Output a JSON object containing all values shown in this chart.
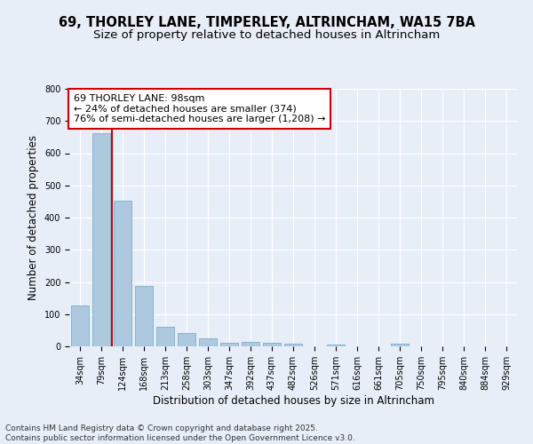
{
  "title_line1": "69, THORLEY LANE, TIMPERLEY, ALTRINCHAM, WA15 7BA",
  "title_line2": "Size of property relative to detached houses in Altrincham",
  "xlabel": "Distribution of detached houses by size in Altrincham",
  "ylabel": "Number of detached properties",
  "categories": [
    "34sqm",
    "79sqm",
    "124sqm",
    "168sqm",
    "213sqm",
    "258sqm",
    "303sqm",
    "347sqm",
    "392sqm",
    "437sqm",
    "482sqm",
    "526sqm",
    "571sqm",
    "616sqm",
    "661sqm",
    "705sqm",
    "750sqm",
    "795sqm",
    "840sqm",
    "884sqm",
    "929sqm"
  ],
  "values": [
    128,
    662,
    452,
    188,
    62,
    42,
    25,
    11,
    13,
    11,
    8,
    0,
    6,
    0,
    0,
    7,
    0,
    0,
    0,
    0,
    0
  ],
  "bar_color": "#aec8e0",
  "bar_edgecolor": "#7aafc8",
  "bar_width": 0.85,
  "vline_x": 1.5,
  "vline_color": "#cc0000",
  "annotation_line1": "69 THORLEY LANE: 98sqm",
  "annotation_line2": "← 24% of detached houses are smaller (374)",
  "annotation_line3": "76% of semi-detached houses are larger (1,208) →",
  "annotation_box_edgecolor": "#cc0000",
  "annotation_box_facecolor": "#ffffff",
  "ylim": [
    0,
    800
  ],
  "yticks": [
    0,
    100,
    200,
    300,
    400,
    500,
    600,
    700,
    800
  ],
  "background_color": "#e8eef8",
  "grid_color": "#ffffff",
  "footer_line1": "Contains HM Land Registry data © Crown copyright and database right 2025.",
  "footer_line2": "Contains public sector information licensed under the Open Government Licence v3.0.",
  "title_fontsize": 10.5,
  "subtitle_fontsize": 9.5,
  "axis_label_fontsize": 8.5,
  "tick_fontsize": 7,
  "annotation_fontsize": 8,
  "footer_fontsize": 6.5
}
